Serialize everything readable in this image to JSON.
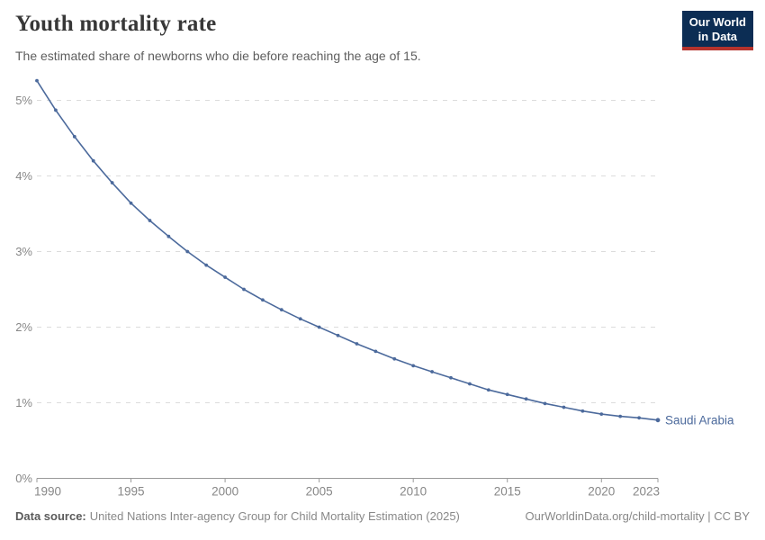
{
  "header": {
    "title": "Youth mortality rate",
    "subtitle": "The estimated share of newborns who die before reaching the age of 15.",
    "logo": {
      "line1": "Our World",
      "line2": "in Data"
    }
  },
  "chart_data": {
    "type": "line",
    "title": "Youth mortality rate",
    "x": [
      1990,
      1991,
      1992,
      1993,
      1994,
      1995,
      1996,
      1997,
      1998,
      1999,
      2000,
      2001,
      2002,
      2003,
      2004,
      2005,
      2006,
      2007,
      2008,
      2009,
      2010,
      2011,
      2012,
      2013,
      2014,
      2015,
      2016,
      2017,
      2018,
      2019,
      2020,
      2021,
      2022,
      2023
    ],
    "series": [
      {
        "name": "Saudi Arabia",
        "values": [
          5.26,
          4.87,
          4.52,
          4.2,
          3.91,
          3.64,
          3.41,
          3.2,
          3.0,
          2.82,
          2.66,
          2.5,
          2.36,
          2.23,
          2.11,
          2.0,
          1.89,
          1.78,
          1.68,
          1.58,
          1.49,
          1.41,
          1.33,
          1.25,
          1.17,
          1.11,
          1.05,
          0.99,
          0.94,
          0.89,
          0.85,
          0.82,
          0.8,
          0.77
        ]
      }
    ],
    "x_ticks": [
      1990,
      1995,
      2000,
      2005,
      2010,
      2015,
      2020,
      2023
    ],
    "y_ticks": [
      0,
      1,
      2,
      3,
      4,
      5
    ],
    "y_tick_suffix": "%",
    "xlim": [
      1990,
      2023
    ],
    "ylim": [
      0,
      5.3
    ],
    "grid": "horizontal-dashed",
    "legend": "end-of-line-label"
  },
  "colors": {
    "line": "#4C6A9C",
    "grid": "#dcdcdc",
    "axis": "#999999",
    "tick_label": "#878787",
    "entity_label": "#4C6A9C",
    "logo_bg": "#0c2d54",
    "logo_accent": "#b5332d"
  },
  "footer": {
    "source_label": "Data source:",
    "source_text": "United Nations Inter-agency Group for Child Mortality Estimation (2025)",
    "license_text": "OurWorldinData.org/child-mortality | CC BY"
  }
}
